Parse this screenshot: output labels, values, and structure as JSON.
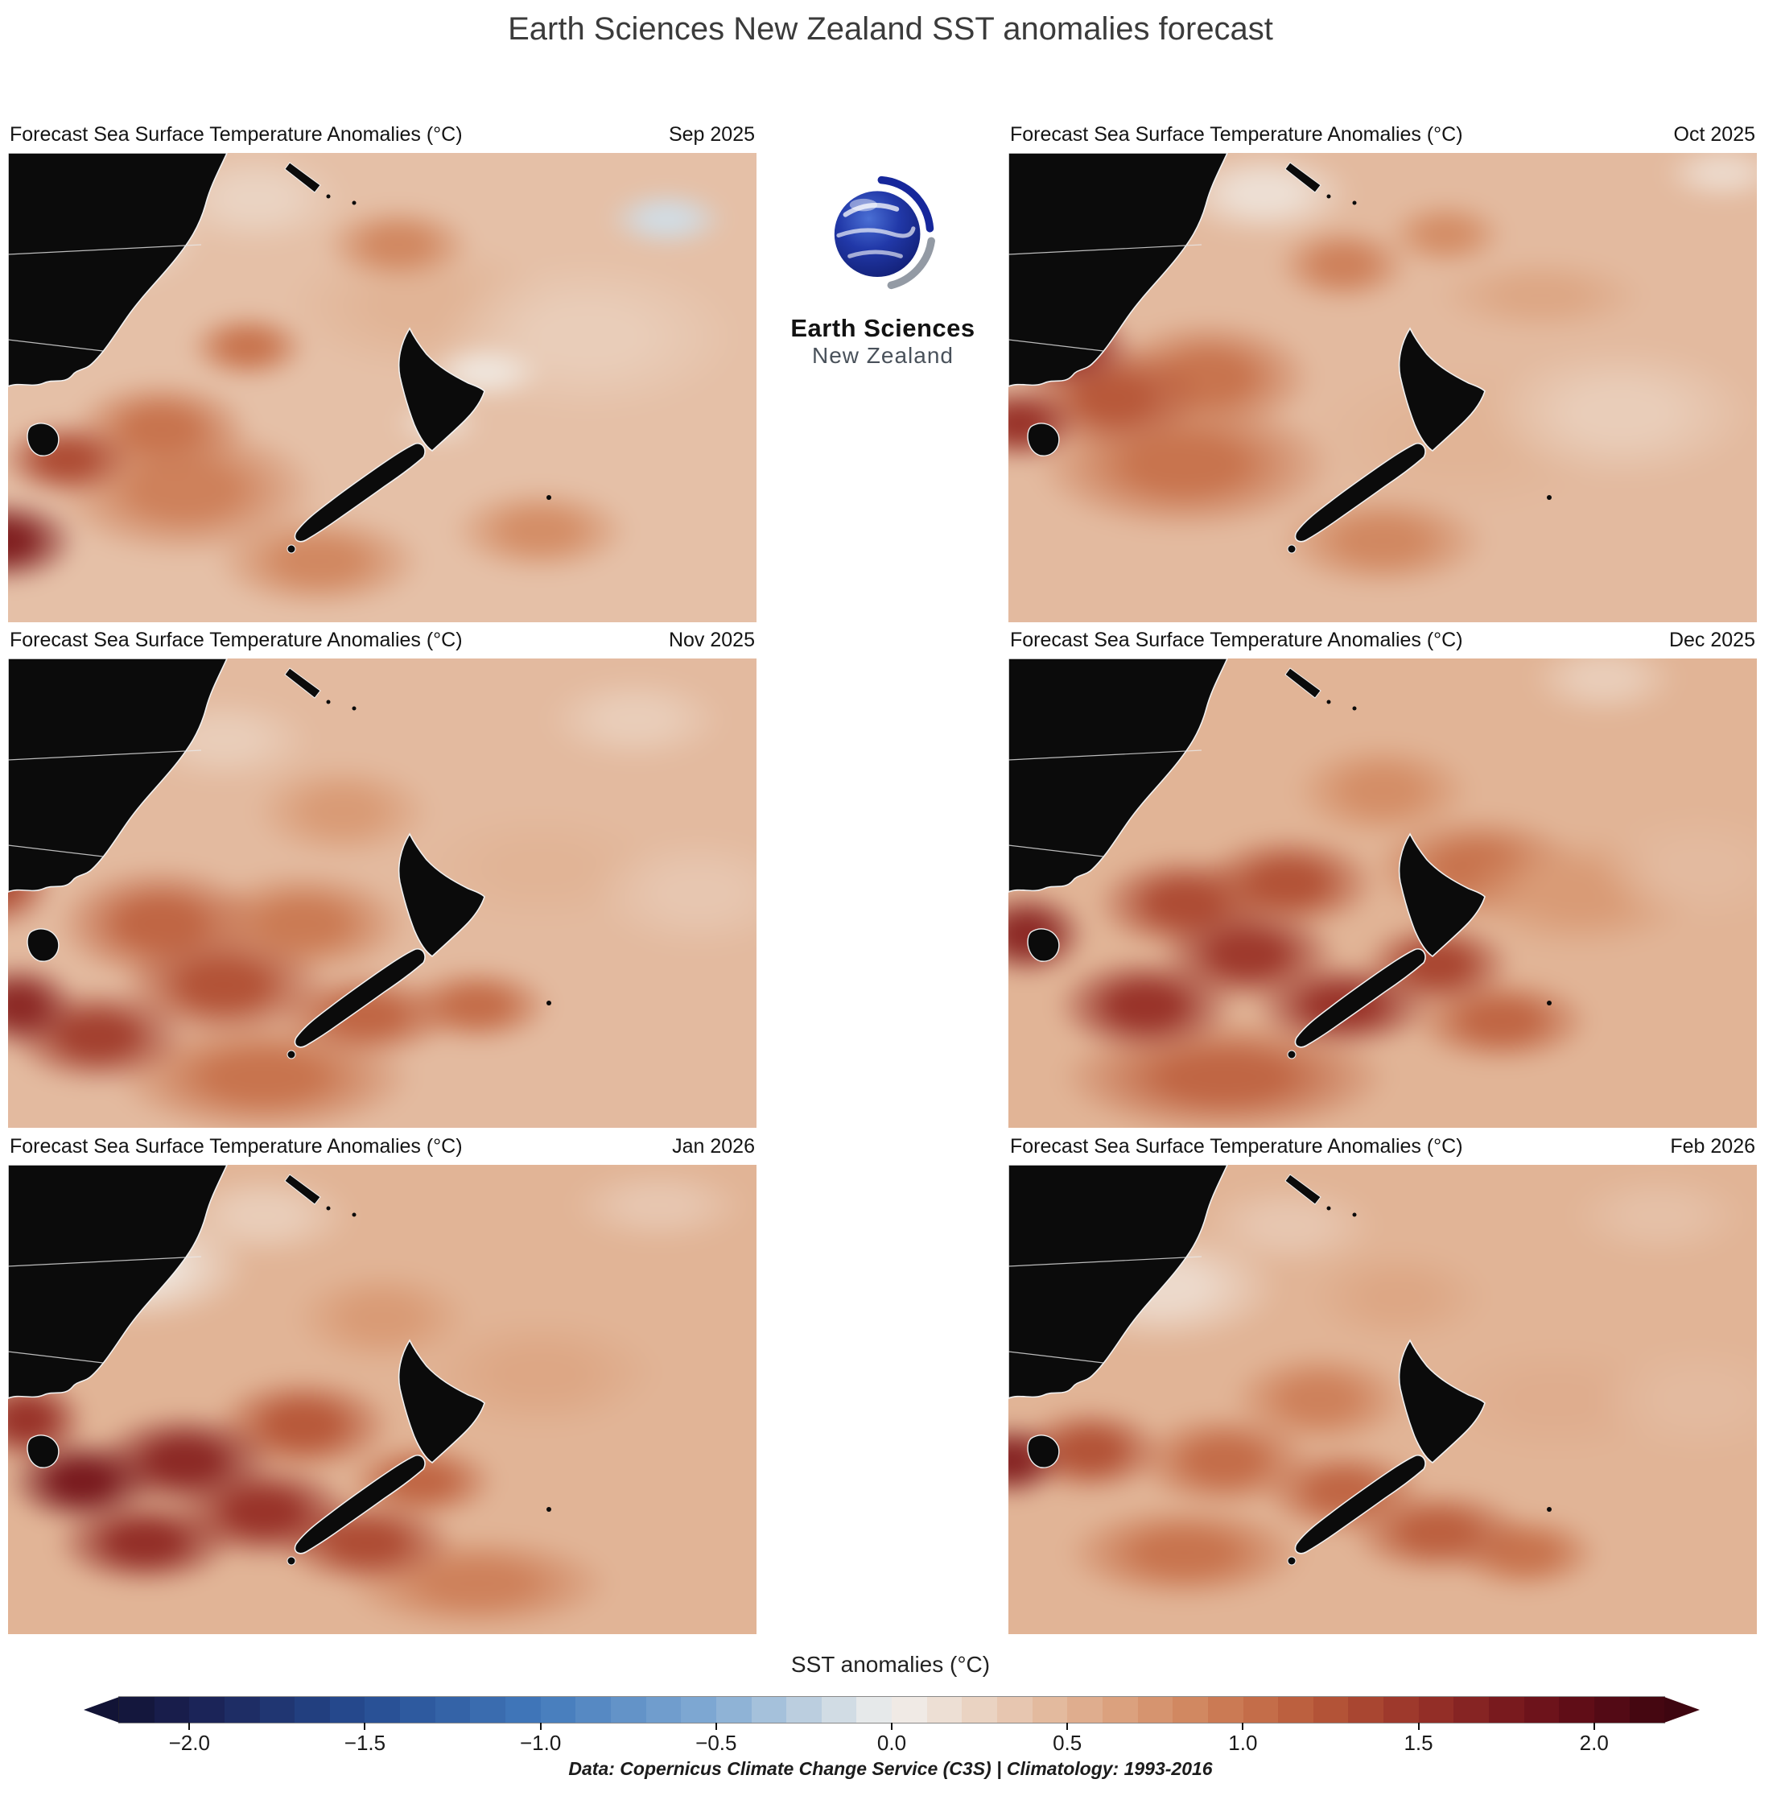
{
  "page_title": "Earth Sciences New Zealand SST anomalies forecast",
  "logo": {
    "line1": "Earth Sciences",
    "line2": "New Zealand",
    "icon": "earth-globe-icon"
  },
  "panels": [
    {
      "title": "Forecast Sea Surface Temperature Anomalies (°C)",
      "date": "Sep 2025"
    },
    {
      "title": "Forecast Sea Surface Temperature Anomalies (°C)",
      "date": "Oct 2025"
    },
    {
      "title": "Forecast Sea Surface Temperature Anomalies (°C)",
      "date": "Nov 2025"
    },
    {
      "title": "Forecast Sea Surface Temperature Anomalies (°C)",
      "date": "Dec 2025"
    },
    {
      "title": "Forecast Sea Surface Temperature Anomalies (°C)",
      "date": "Jan 2026"
    },
    {
      "title": "Forecast Sea Surface Temperature Anomalies (°C)",
      "date": "Feb 2026"
    }
  ],
  "colorbar": {
    "label": "SST anomalies (°C)",
    "tick_values": [
      -2.0,
      -1.5,
      -1.0,
      -0.5,
      0.0,
      0.5,
      1.0,
      1.5,
      2.0
    ],
    "tick_labels": [
      "−2.0",
      "−1.5",
      "−1.0",
      "−0.5",
      "0.0",
      "0.5",
      "1.0",
      "1.5",
      "2.0"
    ]
  },
  "caption": "Data: Copernicus Climate Change Service (C3S) | Climatology: 1993-2016",
  "chart_data": {
    "type": "heatmap",
    "title": "Earth Sciences New Zealand SST anomalies forecast",
    "panel_subtitle": "Forecast Sea Surface Temperature Anomalies (°C)",
    "units": "°C",
    "region": "Southwest Pacific / Tasman Sea around New Zealand (SE Australia at left)",
    "legend_position": "bottom",
    "colorbar": {
      "min": -2.2,
      "max": 2.2,
      "segment_step": 0.1,
      "label": "SST anomalies (°C)",
      "ticks": [
        -2.0,
        -1.5,
        -1.0,
        -0.5,
        0.0,
        0.5,
        1.0,
        1.5,
        2.0
      ]
    },
    "colormap_stops": [
      [
        -2.2,
        [
          18,
          20,
          54
        ]
      ],
      [
        -2.0,
        [
          26,
          32,
          82
        ]
      ],
      [
        -1.5,
        [
          38,
          76,
          146
        ]
      ],
      [
        -1.0,
        [
          66,
          122,
          188
        ]
      ],
      [
        -0.5,
        [
          132,
          172,
          212
        ]
      ],
      [
        -0.2,
        [
          198,
          213,
          225
        ]
      ],
      [
        0.0,
        [
          241,
          240,
          237
        ]
      ],
      [
        0.2,
        [
          236,
          217,
          203
        ]
      ],
      [
        0.4,
        [
          229,
          192,
          167
        ]
      ],
      [
        0.6,
        [
          221,
          167,
          133
        ]
      ],
      [
        0.8,
        [
          212,
          142,
          103
        ]
      ],
      [
        1.0,
        [
          200,
          116,
          78
        ]
      ],
      [
        1.2,
        [
          184,
          89,
          58
        ]
      ],
      [
        1.5,
        [
          153,
          51,
          41
        ]
      ],
      [
        1.8,
        [
          115,
          21,
          28
        ]
      ],
      [
        2.0,
        [
          90,
          11,
          22
        ]
      ],
      [
        2.2,
        [
          62,
          6,
          16
        ]
      ]
    ],
    "blob_format": [
      "x_pct",
      "y_pct",
      "rx_pct",
      "ry_pct",
      "anomaly_c"
    ],
    "panels": [
      {
        "month": "Sep 2025",
        "base_anomaly": 0.4,
        "blobs": [
          [
            2,
            80,
            10,
            9,
            1.7
          ],
          [
            10,
            64,
            9,
            8,
            1.3
          ],
          [
            22,
            58,
            12,
            10,
            1.0
          ],
          [
            33,
            42,
            8,
            7,
            1.0
          ],
          [
            52,
            22,
            10,
            8,
            0.85
          ],
          [
            63,
            47,
            8,
            6,
            0.1
          ],
          [
            57,
            57,
            6,
            5,
            0.2
          ],
          [
            86,
            17,
            8,
            6,
            -0.15
          ],
          [
            70,
            78,
            12,
            9,
            0.8
          ],
          [
            42,
            84,
            14,
            10,
            0.85
          ],
          [
            14,
            20,
            14,
            12,
            0.1
          ],
          [
            34,
            13,
            12,
            10,
            0.25
          ],
          [
            76,
            40,
            20,
            16,
            0.3
          ],
          [
            25,
            70,
            18,
            14,
            0.9
          ],
          [
            55,
            34,
            18,
            14,
            0.5
          ]
        ]
      },
      {
        "month": "Oct 2025",
        "base_anomaly": 0.45,
        "blobs": [
          [
            10,
            42,
            9,
            9,
            1.5
          ],
          [
            4,
            57,
            8,
            8,
            1.5
          ],
          [
            16,
            52,
            12,
            11,
            1.2
          ],
          [
            28,
            48,
            14,
            12,
            1.0
          ],
          [
            45,
            26,
            9,
            8,
            0.9
          ],
          [
            58,
            20,
            8,
            7,
            0.8
          ],
          [
            50,
            80,
            14,
            10,
            0.85
          ],
          [
            70,
            32,
            14,
            8,
            0.6
          ],
          [
            35,
            12,
            12,
            9,
            0.15
          ],
          [
            12,
            18,
            10,
            9,
            0.3
          ],
          [
            80,
            55,
            18,
            14,
            0.3
          ],
          [
            93,
            8,
            8,
            6,
            0.2
          ],
          [
            25,
            65,
            20,
            14,
            1.0
          ],
          [
            60,
            60,
            20,
            16,
            0.5
          ]
        ]
      },
      {
        "month": "Nov 2025",
        "base_anomaly": 0.45,
        "blobs": [
          [
            4,
            72,
            8,
            9,
            1.6
          ],
          [
            14,
            78,
            12,
            10,
            1.4
          ],
          [
            30,
            68,
            14,
            11,
            1.25
          ],
          [
            48,
            74,
            12,
            9,
            1.1
          ],
          [
            62,
            72,
            10,
            8,
            1.05
          ],
          [
            22,
            56,
            14,
            12,
            1.1
          ],
          [
            40,
            56,
            14,
            11,
            0.95
          ],
          [
            1,
            48,
            8,
            10,
            1.3
          ],
          [
            45,
            34,
            12,
            10,
            0.7
          ],
          [
            12,
            12,
            14,
            11,
            0.05
          ],
          [
            30,
            20,
            12,
            9,
            0.3
          ],
          [
            82,
            16,
            12,
            9,
            0.3
          ],
          [
            90,
            50,
            14,
            12,
            0.35
          ],
          [
            70,
            45,
            16,
            12,
            0.5
          ],
          [
            35,
            86,
            20,
            12,
            1.0
          ]
        ]
      },
      {
        "month": "Dec 2025",
        "base_anomaly": 0.5,
        "blobs": [
          [
            5,
            58,
            8,
            9,
            1.6
          ],
          [
            20,
            72,
            12,
            10,
            1.5
          ],
          [
            33,
            62,
            12,
            10,
            1.45
          ],
          [
            45,
            72,
            12,
            9,
            1.5
          ],
          [
            57,
            64,
            10,
            9,
            1.35
          ],
          [
            38,
            48,
            12,
            10,
            1.25
          ],
          [
            25,
            52,
            12,
            10,
            1.3
          ],
          [
            65,
            75,
            12,
            9,
            1.1
          ],
          [
            50,
            30,
            12,
            10,
            0.8
          ],
          [
            12,
            14,
            12,
            10,
            0.15
          ],
          [
            78,
            8,
            10,
            8,
            0.3
          ],
          [
            90,
            45,
            14,
            12,
            0.45
          ],
          [
            75,
            50,
            16,
            12,
            0.7
          ],
          [
            30,
            86,
            22,
            12,
            1.1
          ],
          [
            62,
            45,
            14,
            11,
            1.0
          ]
        ]
      },
      {
        "month": "Jan 2026",
        "base_anomaly": 0.5,
        "blobs": [
          [
            12,
            66,
            10,
            9,
            1.75
          ],
          [
            25,
            62,
            12,
            10,
            1.6
          ],
          [
            35,
            72,
            12,
            10,
            1.5
          ],
          [
            20,
            78,
            12,
            9,
            1.55
          ],
          [
            48,
            78,
            12,
            9,
            1.3
          ],
          [
            5,
            54,
            8,
            9,
            1.5
          ],
          [
            40,
            55,
            12,
            10,
            1.2
          ],
          [
            55,
            66,
            10,
            8,
            1.1
          ],
          [
            50,
            34,
            12,
            10,
            0.7
          ],
          [
            18,
            24,
            16,
            12,
            0.1
          ],
          [
            35,
            14,
            12,
            9,
            0.3
          ],
          [
            85,
            12,
            12,
            8,
            0.35
          ],
          [
            90,
            55,
            14,
            12,
            0.5
          ],
          [
            70,
            45,
            16,
            12,
            0.6
          ],
          [
            62,
            86,
            18,
            10,
            0.9
          ]
        ]
      },
      {
        "month": "Feb 2026",
        "base_anomaly": 0.5,
        "blobs": [
          [
            3,
            62,
            7,
            8,
            1.65
          ],
          [
            13,
            60,
            10,
            9,
            1.25
          ],
          [
            30,
            62,
            12,
            10,
            1.05
          ],
          [
            45,
            68,
            11,
            9,
            1.1
          ],
          [
            57,
            76,
            12,
            9,
            1.15
          ],
          [
            68,
            80,
            10,
            8,
            1.0
          ],
          [
            42,
            50,
            12,
            10,
            0.9
          ],
          [
            52,
            30,
            12,
            10,
            0.6
          ],
          [
            22,
            28,
            16,
            12,
            0.2
          ],
          [
            38,
            16,
            12,
            9,
            0.35
          ],
          [
            85,
            14,
            12,
            9,
            0.4
          ],
          [
            90,
            50,
            14,
            12,
            0.45
          ],
          [
            72,
            50,
            16,
            12,
            0.55
          ],
          [
            25,
            80,
            16,
            10,
            1.0
          ]
        ]
      }
    ]
  }
}
